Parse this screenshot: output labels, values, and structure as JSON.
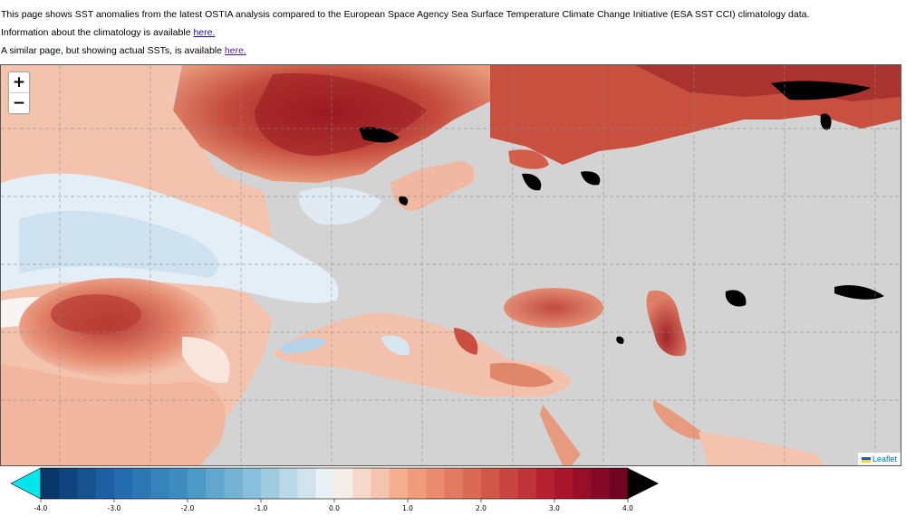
{
  "intro": {
    "line1": "This page shows SST anomalies from the latest OSTIA analysis compared to the European Space Agency Sea Surface Temperature Climate Change Initiative (ESA SST CCI) climatology data.",
    "line2_prefix": "Information about the climatology is available ",
    "line2_link": "here.",
    "line3_prefix": "A similar page, but showing actual SSTs, is available ",
    "line3_link": "here."
  },
  "map": {
    "zoom_in": "+",
    "zoom_out": "−",
    "attribution": "Leaflet",
    "land_color": "#d3d3d3",
    "ice_color": "#000000",
    "grid": true
  },
  "colorbar": {
    "min": -4.0,
    "max": 4.0,
    "step": 0.25,
    "ticks": [
      "-4.0",
      "-3.0",
      "-2.0",
      "-1.0",
      "0.0",
      "1.0",
      "2.0",
      "3.0",
      "4.0"
    ],
    "under_color": "#00e5ee",
    "over_color": "#000000"
  }
}
